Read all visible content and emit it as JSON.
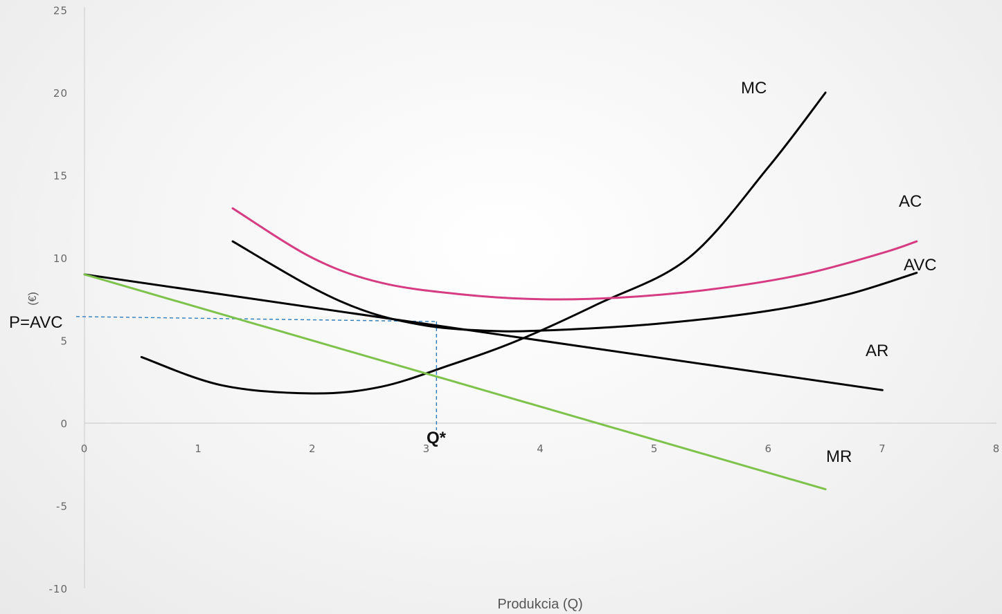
{
  "chart_data": {
    "type": "line",
    "xlabel": "Produkcia (Q)",
    "ylabel": "(€)",
    "xlim": [
      0,
      8
    ],
    "ylim": [
      -10,
      25
    ],
    "x_ticks": [
      "0",
      "1",
      "2",
      "3",
      "4",
      "5",
      "6",
      "7",
      "8"
    ],
    "y_ticks": [
      "25",
      "20",
      "15",
      "10",
      "5",
      "0",
      "-5",
      "-10"
    ],
    "grid": false,
    "colors": {
      "black": "#000000",
      "ac": "#d63c83",
      "mr": "#7dc24b",
      "guide": "#2b7bc0"
    },
    "series": [
      {
        "name": "MC",
        "color": "#000000",
        "x": [
          0.5,
          1.2,
          2.0,
          2.6,
          3.2,
          3.8,
          4.5,
          5.3,
          6.0,
          6.5
        ],
        "y": [
          4.0,
          2.3,
          1.8,
          2.2,
          3.5,
          5.0,
          7.2,
          10.0,
          15.5,
          20.0
        ]
      },
      {
        "name": "AC",
        "color": "#d63c83",
        "x": [
          1.3,
          2.0,
          2.6,
          3.3,
          4.0,
          4.7,
          5.5,
          6.3,
          7.0,
          7.3
        ],
        "y": [
          13.0,
          10.0,
          8.5,
          7.8,
          7.5,
          7.6,
          8.1,
          9.0,
          10.3,
          11.0
        ]
      },
      {
        "name": "AVC",
        "color": "#000000",
        "x": [
          1.3,
          2.0,
          2.5,
          3.0,
          3.5,
          4.0,
          5.0,
          6.0,
          6.7,
          7.3
        ],
        "y": [
          11.0,
          8.2,
          6.7,
          5.9,
          5.6,
          5.6,
          6.0,
          6.8,
          7.8,
          9.1
        ]
      },
      {
        "name": "AR",
        "color": "#000000",
        "x": [
          0,
          7.0
        ],
        "y": [
          9.0,
          2.0
        ]
      },
      {
        "name": "MR",
        "color": "#7dc24b",
        "x": [
          0,
          6.5
        ],
        "y": [
          9.0,
          -4.0
        ]
      }
    ],
    "equilibrium": {
      "q": 3.1,
      "p": 6.3
    },
    "annotations": {
      "p_label": "P=AVC",
      "q_label": "Q*"
    }
  }
}
